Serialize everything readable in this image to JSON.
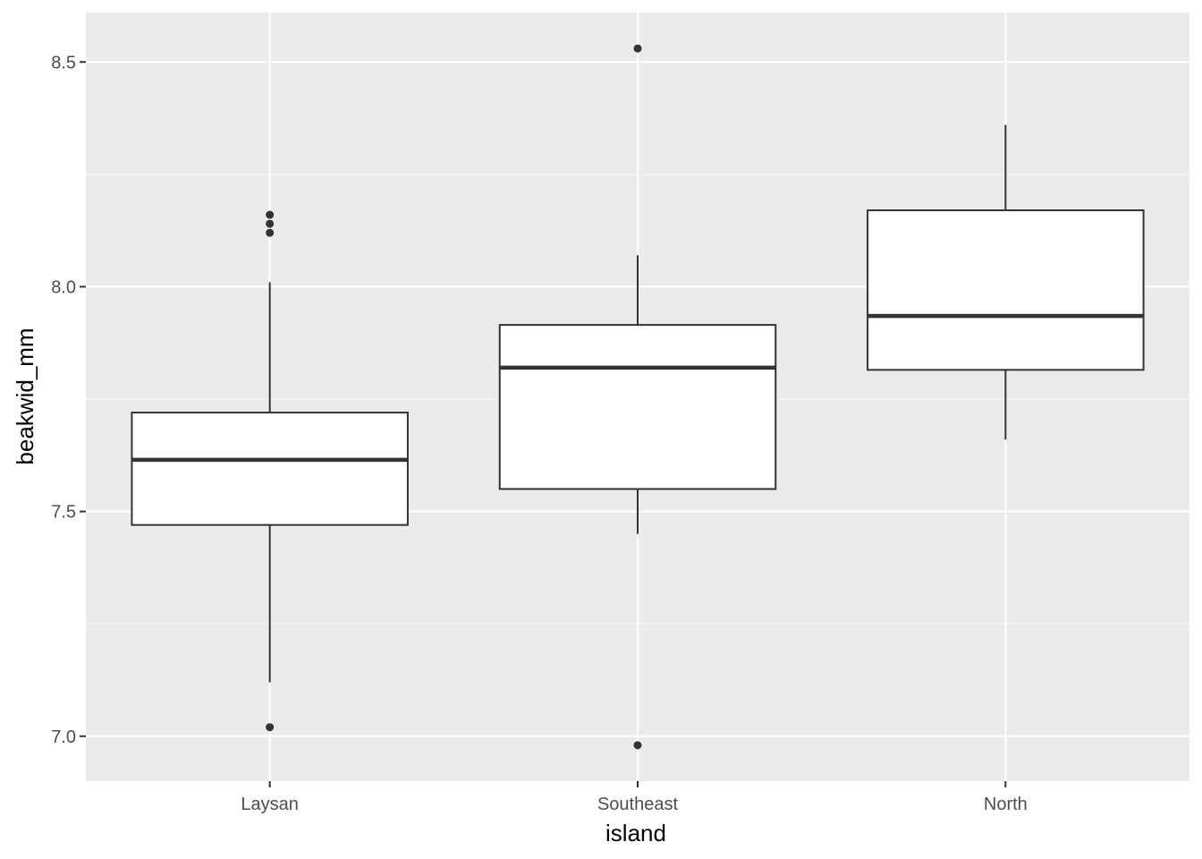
{
  "chart_data": {
    "type": "boxplot",
    "xlabel": "island",
    "ylabel": "beakwid_mm",
    "categories": [
      "Laysan",
      "Southeast",
      "North"
    ],
    "ylim": [
      6.9,
      8.61
    ],
    "yticks": [
      7.0,
      7.5,
      8.0,
      8.5
    ],
    "ytick_labels": [
      "7.0",
      "7.5",
      "8.0",
      "8.5"
    ],
    "grid": true,
    "legend": "none",
    "boxes": [
      {
        "category": "Laysan",
        "whisker_low": 7.12,
        "q1": 7.47,
        "median": 7.615,
        "q3": 7.72,
        "whisker_high": 8.01,
        "outliers": [
          7.02,
          8.12,
          8.14,
          8.16
        ]
      },
      {
        "category": "Southeast",
        "whisker_low": 7.45,
        "q1": 7.55,
        "median": 7.82,
        "q3": 7.915,
        "whisker_high": 8.07,
        "outliers": [
          6.98,
          8.53
        ]
      },
      {
        "category": "North",
        "whisker_low": 7.66,
        "q1": 7.815,
        "median": 7.935,
        "q3": 8.17,
        "whisker_high": 8.36,
        "outliers": []
      }
    ],
    "colors": {
      "panel": "#ebebeb",
      "grid_major": "#ffffff",
      "box_fill": "#ffffff",
      "box_line": "#333333",
      "tick_text": "#4d4d4d",
      "title_text": "#000000"
    }
  }
}
